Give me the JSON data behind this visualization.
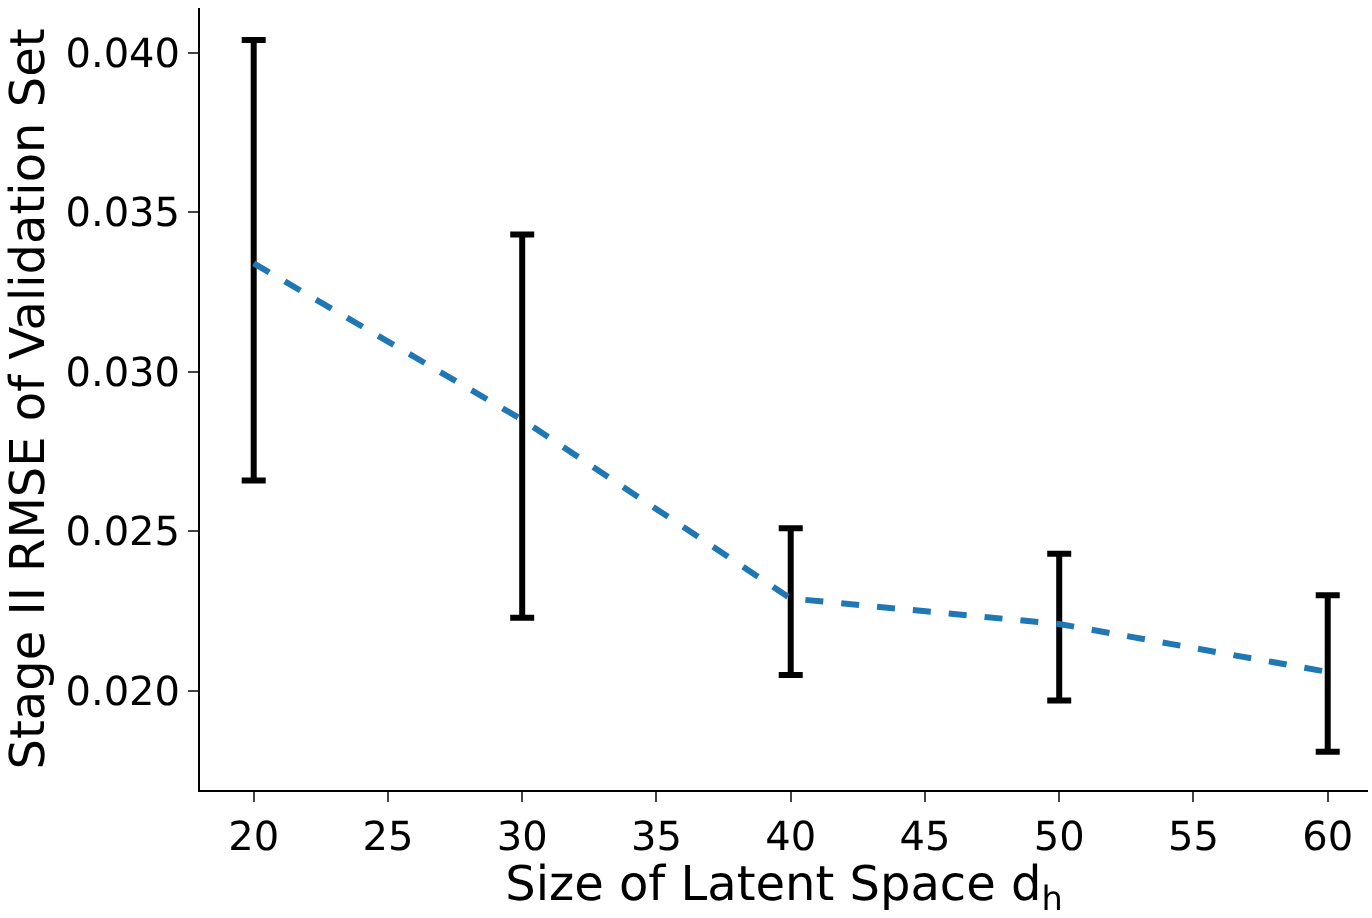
{
  "chart_data": {
    "type": "line",
    "xlabel": "Size of Latent Space d$_{h}$",
    "ylabel": "Stage II RMSE of Validation Set",
    "x": [
      20,
      30,
      40,
      50,
      60
    ],
    "series": [
      {
        "color": "#1f77b4",
        "values": [
          0.0334,
          0.0285,
          0.0229,
          0.0221,
          0.0206
        ],
        "errors": [
          [
            0.0266,
            0.0404
          ],
          [
            0.0223,
            0.0343
          ],
          [
            0.0205,
            0.0251
          ],
          [
            0.0197,
            0.0243
          ],
          [
            0.0181,
            0.023
          ]
        ]
      }
    ],
    "line_style": "dashed",
    "marker": "none",
    "xlim": [
      18,
      61.5
    ],
    "ylim": [
      0.0169,
      0.0414
    ],
    "xticks": [
      20,
      25,
      30,
      35,
      40,
      45,
      50,
      55,
      60
    ],
    "yticks": [
      {
        "value": 0.02,
        "label": "0.020"
      },
      {
        "value": 0.025,
        "label": "0.025"
      },
      {
        "value": 0.03,
        "label": "0.030"
      },
      {
        "value": 0.035,
        "label": "0.035"
      },
      {
        "value": 0.04,
        "label": "0.040"
      }
    ]
  }
}
